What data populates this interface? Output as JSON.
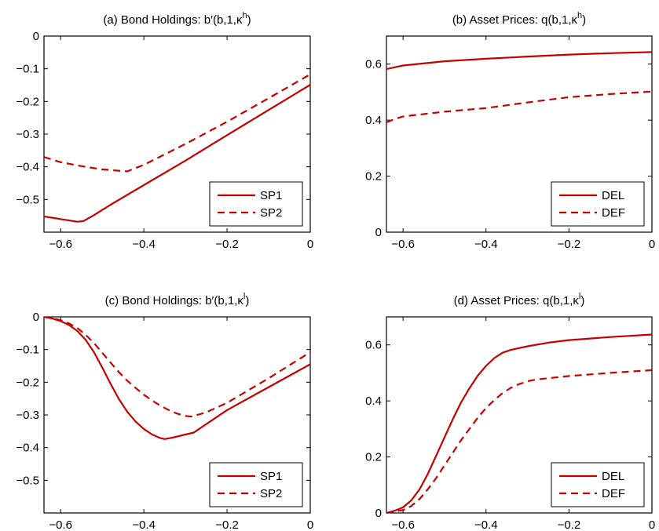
{
  "colors": {
    "series": "#c40000",
    "axis": "#000000",
    "background": "#ffffff"
  },
  "chart_data": [
    {
      "id": "a",
      "type": "line",
      "title": "(a) Bond Holdings: b′(b,1,κ",
      "title_sup": "h",
      "title_end": ")",
      "xlim": [
        -0.64,
        0
      ],
      "ylim": [
        -0.6,
        0
      ],
      "xticks": [
        -0.6,
        -0.4,
        -0.2,
        0
      ],
      "xtick_labels": [
        "−0.6",
        "−0.4",
        "−0.2",
        "0"
      ],
      "yticks": [
        0,
        -0.1,
        -0.2,
        -0.3,
        -0.4,
        -0.5
      ],
      "ytick_labels": [
        "0",
        "−0.1",
        "−0.2",
        "−0.3",
        "−0.4",
        "−0.5"
      ],
      "legend_position": "bottom-right",
      "series": [
        {
          "name": "SP1",
          "style": "solid",
          "x": [
            -0.64,
            -0.6,
            -0.56,
            -0.545,
            -0.52,
            -0.48,
            -0.4,
            -0.3,
            -0.2,
            -0.1,
            0
          ],
          "y": [
            -0.552,
            -0.56,
            -0.568,
            -0.566,
            -0.548,
            -0.516,
            -0.456,
            -0.381,
            -0.303,
            -0.226,
            -0.149
          ]
        },
        {
          "name": "SP2",
          "style": "dashed",
          "x": [
            -0.64,
            -0.6,
            -0.55,
            -0.5,
            -0.44,
            -0.4,
            -0.3,
            -0.2,
            -0.1,
            0
          ],
          "y": [
            -0.37,
            -0.386,
            -0.398,
            -0.408,
            -0.414,
            -0.394,
            -0.33,
            -0.262,
            -0.19,
            -0.117
          ]
        }
      ]
    },
    {
      "id": "b",
      "type": "line",
      "title": "(b) Asset Prices: q(b,1,κ",
      "title_sup": "h",
      "title_end": ")",
      "xlim": [
        -0.64,
        0
      ],
      "ylim": [
        0,
        0.7
      ],
      "xticks": [
        -0.6,
        -0.4,
        -0.2,
        0
      ],
      "xtick_labels": [
        "−0.6",
        "−0.4",
        "−0.2",
        "0"
      ],
      "yticks": [
        0,
        0.2,
        0.4,
        0.6
      ],
      "ytick_labels": [
        "0",
        "0.2",
        "0.4",
        "0.6"
      ],
      "legend_position": "bottom-right",
      "series": [
        {
          "name": "DEL",
          "style": "solid",
          "x": [
            -0.64,
            -0.6,
            -0.5,
            -0.4,
            -0.3,
            -0.2,
            -0.1,
            0
          ],
          "y": [
            0.582,
            0.595,
            0.61,
            0.619,
            0.627,
            0.634,
            0.639,
            0.643
          ]
        },
        {
          "name": "DEF",
          "style": "dashed",
          "x": [
            -0.64,
            -0.62,
            -0.6,
            -0.5,
            -0.4,
            -0.3,
            -0.2,
            -0.1,
            0
          ],
          "y": [
            0.392,
            0.404,
            0.413,
            0.43,
            0.443,
            0.463,
            0.482,
            0.493,
            0.502
          ]
        }
      ]
    },
    {
      "id": "c",
      "type": "line",
      "title": "(c) Bond Holdings: b′(b,1,κ",
      "title_sup": "l",
      "title_end": ")",
      "xlim": [
        -0.64,
        0
      ],
      "ylim": [
        -0.6,
        0
      ],
      "xticks": [
        -0.6,
        -0.4,
        -0.2,
        0
      ],
      "xtick_labels": [
        "−0.6",
        "−0.4",
        "−0.2",
        "0"
      ],
      "yticks": [
        0,
        -0.1,
        -0.2,
        -0.3,
        -0.4,
        -0.5
      ],
      "ytick_labels": [
        "0",
        "−0.1",
        "−0.2",
        "−0.3",
        "−0.4",
        "−0.5"
      ],
      "legend_position": "bottom-right",
      "series": [
        {
          "name": "SP1",
          "style": "solid",
          "x": [
            -0.64,
            -0.62,
            -0.6,
            -0.58,
            -0.56,
            -0.54,
            -0.52,
            -0.5,
            -0.48,
            -0.46,
            -0.44,
            -0.42,
            -0.4,
            -0.38,
            -0.36,
            -0.35,
            -0.33,
            -0.3,
            -0.28,
            -0.2,
            -0.1,
            0
          ],
          "y": [
            0,
            -0.005,
            -0.013,
            -0.025,
            -0.043,
            -0.07,
            -0.108,
            -0.155,
            -0.205,
            -0.251,
            -0.29,
            -0.32,
            -0.343,
            -0.36,
            -0.371,
            -0.374,
            -0.369,
            -0.36,
            -0.354,
            -0.285,
            -0.215,
            -0.145
          ]
        },
        {
          "name": "SP2",
          "style": "dashed",
          "x": [
            -0.64,
            -0.62,
            -0.6,
            -0.58,
            -0.56,
            -0.54,
            -0.52,
            -0.5,
            -0.48,
            -0.46,
            -0.44,
            -0.42,
            -0.4,
            -0.38,
            -0.36,
            -0.34,
            -0.32,
            -0.3,
            -0.285,
            -0.25,
            -0.2,
            -0.1,
            0
          ],
          "y": [
            0,
            -0.004,
            -0.01,
            -0.02,
            -0.034,
            -0.055,
            -0.08,
            -0.11,
            -0.14,
            -0.169,
            -0.195,
            -0.217,
            -0.238,
            -0.256,
            -0.272,
            -0.285,
            -0.296,
            -0.303,
            -0.305,
            -0.292,
            -0.263,
            -0.188,
            -0.108
          ]
        }
      ]
    },
    {
      "id": "d",
      "type": "line",
      "title": "(d) Asset Prices: q(b,1,κ",
      "title_sup": "l",
      "title_end": ")",
      "xlim": [
        -0.64,
        0
      ],
      "ylim": [
        0,
        0.7
      ],
      "xticks": [
        -0.6,
        -0.4,
        -0.2,
        0
      ],
      "xtick_labels": [
        "−0.6",
        "−0.4",
        "−0.2",
        "0"
      ],
      "yticks": [
        0,
        0.2,
        0.4,
        0.6
      ],
      "ytick_labels": [
        "0",
        "0.2",
        "0.4",
        "0.6"
      ],
      "legend_position": "bottom-right",
      "series": [
        {
          "name": "DEL",
          "style": "solid",
          "x": [
            -0.64,
            -0.62,
            -0.6,
            -0.58,
            -0.56,
            -0.54,
            -0.52,
            -0.5,
            -0.48,
            -0.46,
            -0.44,
            -0.42,
            -0.4,
            -0.38,
            -0.36,
            -0.34,
            -0.3,
            -0.25,
            -0.2,
            -0.1,
            0
          ],
          "y": [
            0,
            0.008,
            0.02,
            0.045,
            0.085,
            0.14,
            0.205,
            0.27,
            0.335,
            0.395,
            0.445,
            0.49,
            0.525,
            0.553,
            0.572,
            0.582,
            0.595,
            0.608,
            0.617,
            0.628,
            0.637
          ]
        },
        {
          "name": "DEF",
          "style": "dashed",
          "x": [
            -0.64,
            -0.6,
            -0.58,
            -0.56,
            -0.54,
            -0.52,
            -0.5,
            -0.48,
            -0.46,
            -0.44,
            -0.42,
            -0.4,
            -0.38,
            -0.36,
            -0.34,
            -0.32,
            -0.3,
            -0.28,
            -0.25,
            -0.2,
            -0.1,
            0
          ],
          "y": [
            0,
            0.01,
            0.025,
            0.05,
            0.085,
            0.125,
            0.17,
            0.215,
            0.26,
            0.3,
            0.34,
            0.375,
            0.403,
            0.428,
            0.447,
            0.46,
            0.47,
            0.476,
            0.481,
            0.489,
            0.5,
            0.51
          ]
        }
      ]
    }
  ]
}
